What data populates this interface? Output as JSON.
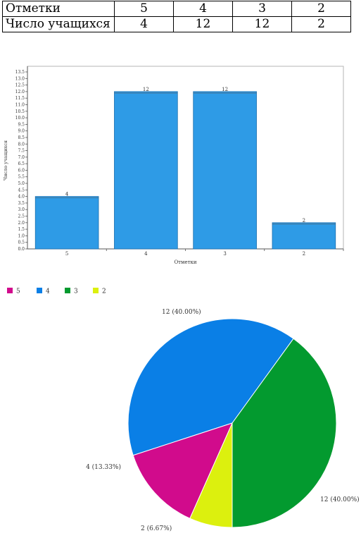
{
  "table": {
    "row1_label": "Отметки",
    "row2_label": "Число учащихся",
    "grades": [
      "5",
      "4",
      "3",
      "2"
    ],
    "counts": [
      "4",
      "12",
      "12",
      "2"
    ]
  },
  "chart_data": [
    {
      "type": "bar",
      "categories": [
        "5",
        "4",
        "3",
        "2"
      ],
      "values": [
        4,
        12,
        12,
        2
      ],
      "data_labels": [
        "4",
        "12",
        "12",
        "2"
      ],
      "xlabel": "Отметки",
      "ylabel": "Число учащихся",
      "ylim": [
        0,
        13.5
      ],
      "ytick_step": 0.5,
      "grid": false,
      "color": "#2e9be6"
    },
    {
      "type": "pie",
      "categories": [
        "5",
        "4",
        "3",
        "2"
      ],
      "values": [
        4,
        12,
        12,
        2
      ],
      "slice_labels": [
        "4 (13.33%)",
        "12 (40.00%)",
        "12 (40.00%)",
        "2 (6.67%)"
      ],
      "colors": [
        "#d10b8c",
        "#0a7fe6",
        "#039a2f",
        "#dcf00e"
      ],
      "legend": "top-left"
    }
  ]
}
